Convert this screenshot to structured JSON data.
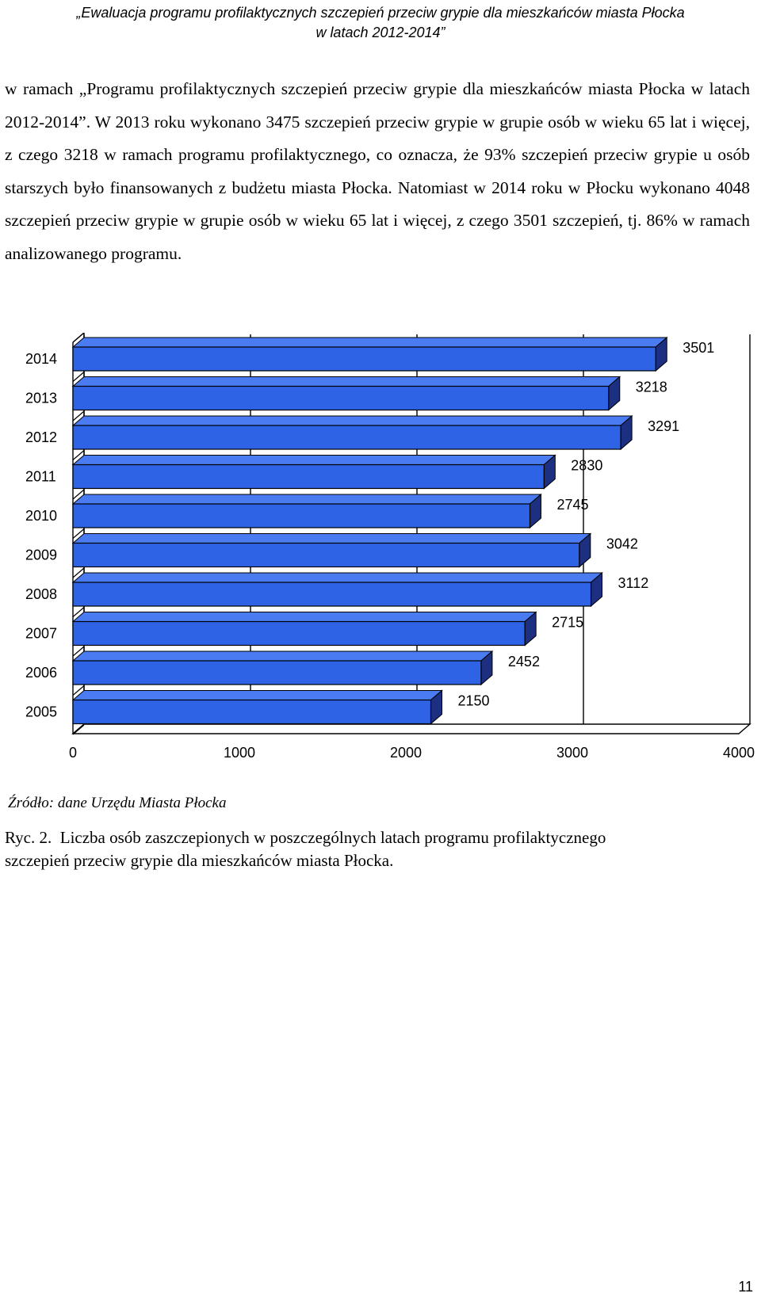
{
  "header": {
    "line1": "„Ewaluacja programu profilaktycznych szczepień przeciw grypie dla mieszkańców miasta Płocka",
    "line2": "w latach 2012-2014”"
  },
  "body": {
    "paragraph": "w ramach „Programu profilaktycznych szczepień przeciw grypie dla mieszkańców miasta Płocka w latach 2012-2014”. W 2013 roku wykonano 3475 szczepień przeciw grypie w grupie osób w wieku 65 lat i więcej, z czego 3218 w ramach programu profilaktycznego, co oznacza, że 93% szczepień przeciw grypie u osób starszych było finansowanych z budżetu miasta Płocka. Natomiast w 2014 roku w Płocku wykonano 4048 szczepień przeciw grypie w grupie osób w wieku 65 lat i więcej, z czego 3501 szczepień, tj. 86% w ramach analizowanego programu."
  },
  "chart_data": {
    "type": "bar",
    "orientation": "horizontal",
    "style": "3d",
    "categories": [
      "2014",
      "2013",
      "2012",
      "2011",
      "2010",
      "2009",
      "2008",
      "2007",
      "2006",
      "2005"
    ],
    "values": [
      3501,
      3218,
      3291,
      2830,
      2745,
      3042,
      3112,
      2715,
      2452,
      2150
    ],
    "data_labels": [
      "3501",
      "3218",
      "3291",
      "2830",
      "2745",
      "3042",
      "3112",
      "2715",
      "2452",
      "2150"
    ],
    "xlim": [
      0,
      4000
    ],
    "xticks": [
      "0",
      "1000",
      "2000",
      "3000",
      "4000"
    ],
    "grid": true,
    "legend": "none",
    "colors": {
      "bar_front": "#2f63e6",
      "bar_top": "#4a7bf0",
      "bar_side": "#1c2f80",
      "bar_edge": "#000000"
    }
  },
  "source": "Źródło: dane Urzędu Miasta Płocka",
  "caption": {
    "line1": "Ryc. 2.  Liczba osób zaszczepionych w poszczególnych latach programu profilaktycznego",
    "line2": "szczepień przeciw grypie dla mieszkańców miasta Płocka."
  },
  "page_number": "11"
}
